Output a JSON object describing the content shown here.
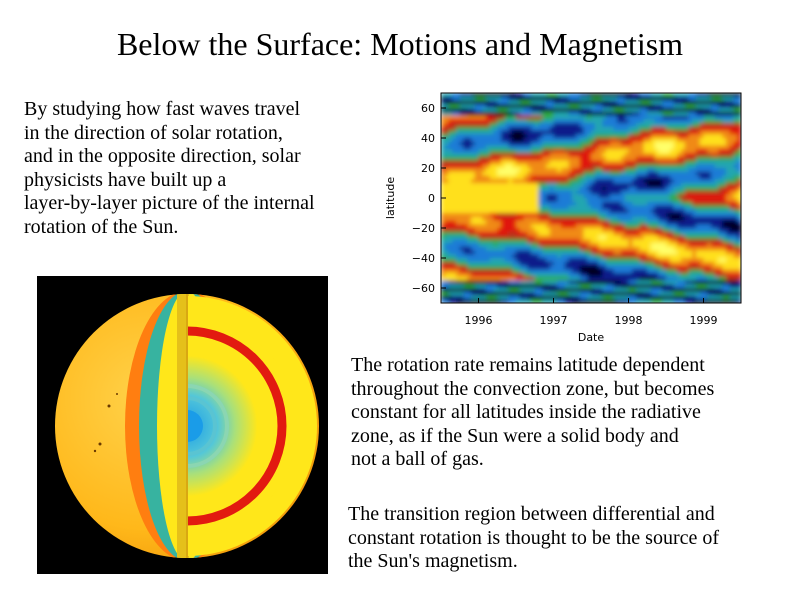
{
  "slide": {
    "title": "Below the Surface: Motions and Magnetism",
    "paragraph_1": "By studying how fast waves travel\nin the direction of solar rotation,\nand in the opposite direction, solar\nphysicists have built up a\nlayer-by-layer picture of  the internal\nrotation of the Sun.",
    "paragraph_2": "The rotation rate remains latitude dependent\nthroughout the convection zone, but becomes\nconstant for all latitudes inside the radiative\nzone, as if the Sun were a solid body and\nnot a ball of gas.",
    "paragraph_3": "The transition region between differential and\nconstant rotation is thought to be the source of\nthe Sun's magnetism."
  },
  "chart_data": {
    "type": "heatmap",
    "xlabel": "Date",
    "ylabel": "latitude",
    "xlim": [
      1995.5,
      1999.5
    ],
    "ylim": [
      -70,
      70
    ],
    "x_ticks": [
      1996,
      1997,
      1998,
      1999
    ],
    "x_tick_labels": [
      "1996",
      "1997",
      "1998",
      "1999"
    ],
    "y_ticks": [
      60,
      40,
      20,
      0,
      -20,
      -40,
      -60
    ],
    "y_tick_labels": [
      "60",
      "40",
      "20",
      "0",
      "−20",
      "−40",
      "−60"
    ],
    "colormap": [
      "#000022",
      "#0b1a8a",
      "#1e7bd6",
      "#22a6b0",
      "#2eab4a",
      "#b5361a",
      "#e0150b",
      "#f08a12",
      "#ffe01a",
      "#ffff6a"
    ]
  },
  "sun_image": {
    "colors": {
      "surface": "#ffc01a",
      "convection_zone": "#ff7e10",
      "tachocline": "#e21a10",
      "radiative_zone": "#ffe71a",
      "core": "#1a9ce8",
      "band_teal": "#37b3a0"
    }
  }
}
